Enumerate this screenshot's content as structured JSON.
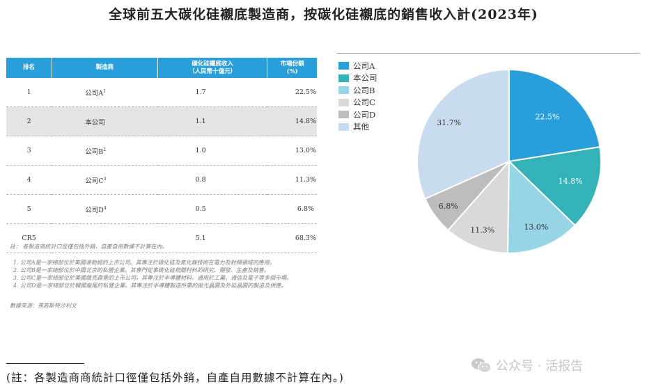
{
  "title": "全球前五大碳化硅襯底製造商，按碳化硅襯底的銷售收入計(2023年)",
  "table": {
    "headers": [
      "排名",
      "製造商",
      "碳化硅襯底收入\n（人民幣十億元）",
      "市場份額\n(%)"
    ],
    "rows": [
      {
        "rank": "1",
        "name": "公司A",
        "sup": "1",
        "revenue": "1.7",
        "share": "22.5%"
      },
      {
        "rank": "2",
        "name": "本公司",
        "sup": "",
        "revenue": "1.1",
        "share": "14.8%"
      },
      {
        "rank": "3",
        "name": "公司B",
        "sup": "2",
        "revenue": "1.0",
        "share": "13.0%"
      },
      {
        "rank": "4",
        "name": "公司C",
        "sup": "3",
        "revenue": "0.8",
        "share": "11.3%"
      },
      {
        "rank": "5",
        "name": "公司D",
        "sup": "4",
        "revenue": "0.5",
        "share": "6.8%"
      },
      {
        "rank": "CR5",
        "name": "",
        "sup": "",
        "revenue": "5.1",
        "share": "68.3%"
      }
    ]
  },
  "notes": {
    "intro": "註： 各製造商統計口徑僅包括外銷，自產自用數據不計算在內。",
    "items": [
      "公司A是一家總部位於美國達勒姆的上市公司。其專注於碳化硅及氮化鎵技術在電力及射頻領域的應用。",
      "公司B是一家總部位於中國北京的私營企業。其專門從事碳化硅相關材料的研究、開發、生產及銷售。",
      "公司C是一家總部位於美國薩克森堡的上市公司。其專注於半導體材料、通用於工業、通信及電子等多個市場。",
      "公司D是一家總部位於韓國龜尾的私營企業。其專注於半導體製造所需的拋光晶圓及外延晶圓的製造及供應。"
    ],
    "source": "數據來源：弗若斯特沙利文"
  },
  "footnote": "(註：各製造商商統計口徑僅包括外銷，自產自用數據不計算在內。)",
  "watermark": "公众号 · 活报告",
  "chart_data": {
    "type": "pie",
    "categories": [
      "公司A",
      "本公司",
      "公司B",
      "公司C",
      "公司D",
      "其他"
    ],
    "values": [
      22.5,
      14.8,
      13.0,
      11.3,
      6.8,
      31.7
    ],
    "labels": [
      "22.5%",
      "14.8%",
      "13.0%",
      "11.3%",
      "6.8%",
      "31.7%"
    ],
    "colors": [
      "#2a9ed8",
      "#35b2b8",
      "#96d4e6",
      "#d8d9da",
      "#bcbdbe",
      "#c9dbee"
    ],
    "legend_position": "top-left"
  }
}
